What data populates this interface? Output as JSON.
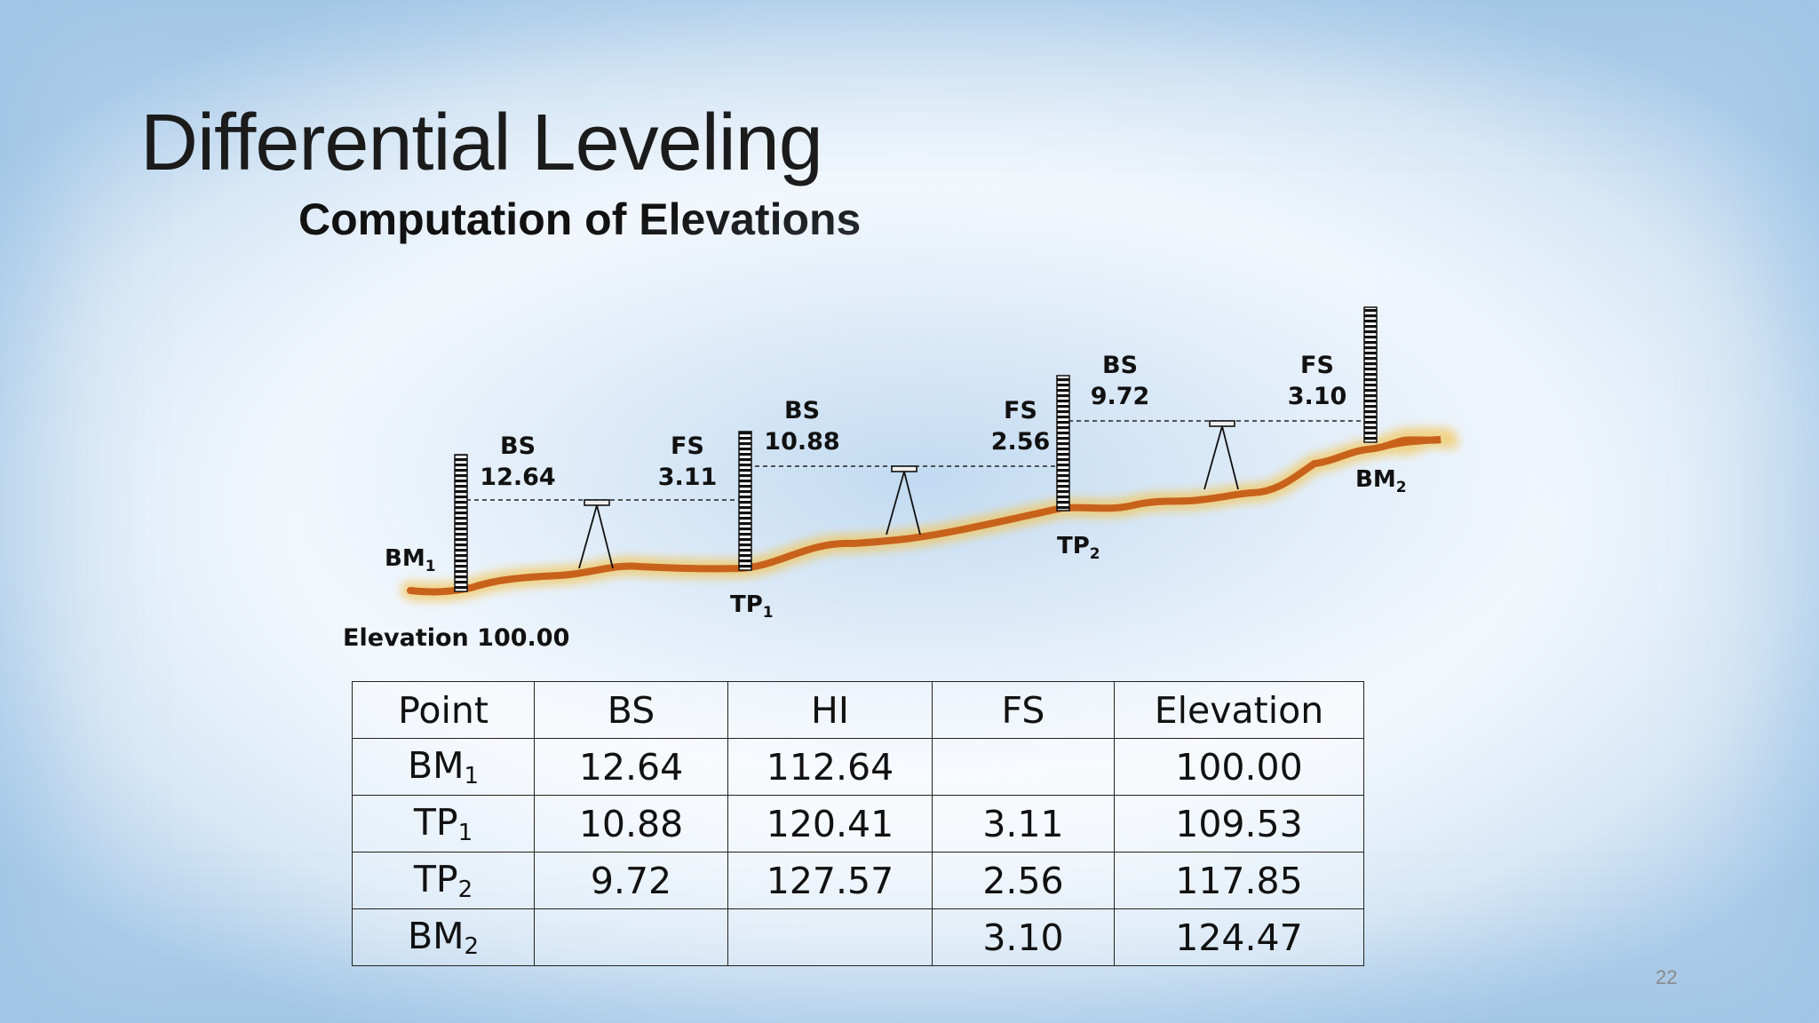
{
  "slide": {
    "title": "Differential Leveling",
    "subtitle": "Computation of Elevations",
    "page_number": "22"
  },
  "diagram": {
    "points": [
      {
        "base": "BM",
        "sub": "1"
      },
      {
        "base": "TP",
        "sub": "1"
      },
      {
        "base": "TP",
        "sub": "2"
      },
      {
        "base": "BM",
        "sub": "2"
      }
    ],
    "elevation_label": "Elevation 100.00",
    "readings": [
      {
        "type": "BS",
        "value": "12.64"
      },
      {
        "type": "FS",
        "value": "3.11"
      },
      {
        "type": "BS",
        "value": "10.88"
      },
      {
        "type": "FS",
        "value": "2.56"
      },
      {
        "type": "BS",
        "value": "9.72"
      },
      {
        "type": "FS",
        "value": "3.10"
      }
    ],
    "colors": {
      "ground": "#c8621b",
      "ground_glow": "#f3c658",
      "rod": "#111111",
      "sight_line": "#222222"
    }
  },
  "table": {
    "headers": [
      "Point",
      "BS",
      "HI",
      "FS",
      "Elevation"
    ],
    "rows": [
      {
        "point": {
          "base": "BM",
          "sub": "1"
        },
        "bs": "12.64",
        "hi": "112.64",
        "fs": "",
        "elevation": "100.00"
      },
      {
        "point": {
          "base": "TP",
          "sub": "1"
        },
        "bs": "10.88",
        "hi": "120.41",
        "fs": "3.11",
        "elevation": "109.53"
      },
      {
        "point": {
          "base": "TP",
          "sub": "2"
        },
        "bs": "9.72",
        "hi": "127.57",
        "fs": "2.56",
        "elevation": "117.85"
      },
      {
        "point": {
          "base": "BM",
          "sub": "2"
        },
        "bs": "",
        "hi": "",
        "fs": "3.10",
        "elevation": "124.47"
      }
    ]
  }
}
